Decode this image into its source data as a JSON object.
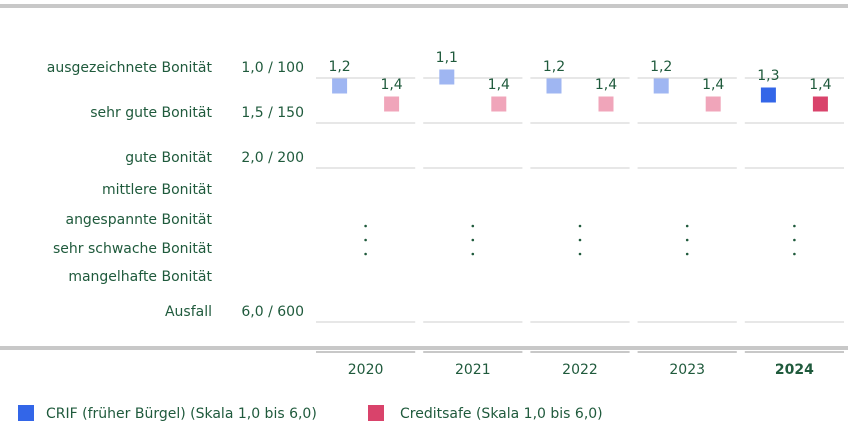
{
  "chart_data": {
    "type": "dot",
    "categories": [
      "2020",
      "2021",
      "2022",
      "2023",
      "2024"
    ],
    "highlight": 4,
    "rating_levels": [
      "ausgezeichnete Bonität",
      "sehr gute Bonität",
      "gute Bonität",
      "mittlere Bonität",
      "angespannte Bonität",
      "sehr schwache Bonität",
      "mangelhafte Bonität",
      "Ausfall"
    ],
    "ylim": [
      1,
      6
    ],
    "yticks": [
      {
        "value": 1.0,
        "label": "1,0 / 100"
      },
      {
        "value": 1.5,
        "label": "1,5 / 150"
      },
      {
        "value": 2.0,
        "label": "2,0 / 200"
      },
      {
        "value": 6.0,
        "label": "6,0 / 600"
      }
    ],
    "series": [
      {
        "name": "CRIF (früher Bürgel) (Skala 1,0 bis 6,0)",
        "color": "#3366e8",
        "faded_color": "#9fb6f2",
        "values": [
          1.2,
          1.1,
          1.2,
          1.2,
          1.3
        ],
        "value_labels": [
          "1,2",
          "1,1",
          "1,2",
          "1,2",
          "1,3"
        ]
      },
      {
        "name": "Creditsafe (Skala 1,0 bis 6,0)",
        "color": "#d9436b",
        "faded_color": "#f0a5ba",
        "values": [
          1.4,
          1.4,
          1.4,
          1.4,
          1.4
        ],
        "value_labels": [
          "1,4",
          "1,4",
          "1,4",
          "1,4",
          "1,4"
        ]
      }
    ]
  }
}
